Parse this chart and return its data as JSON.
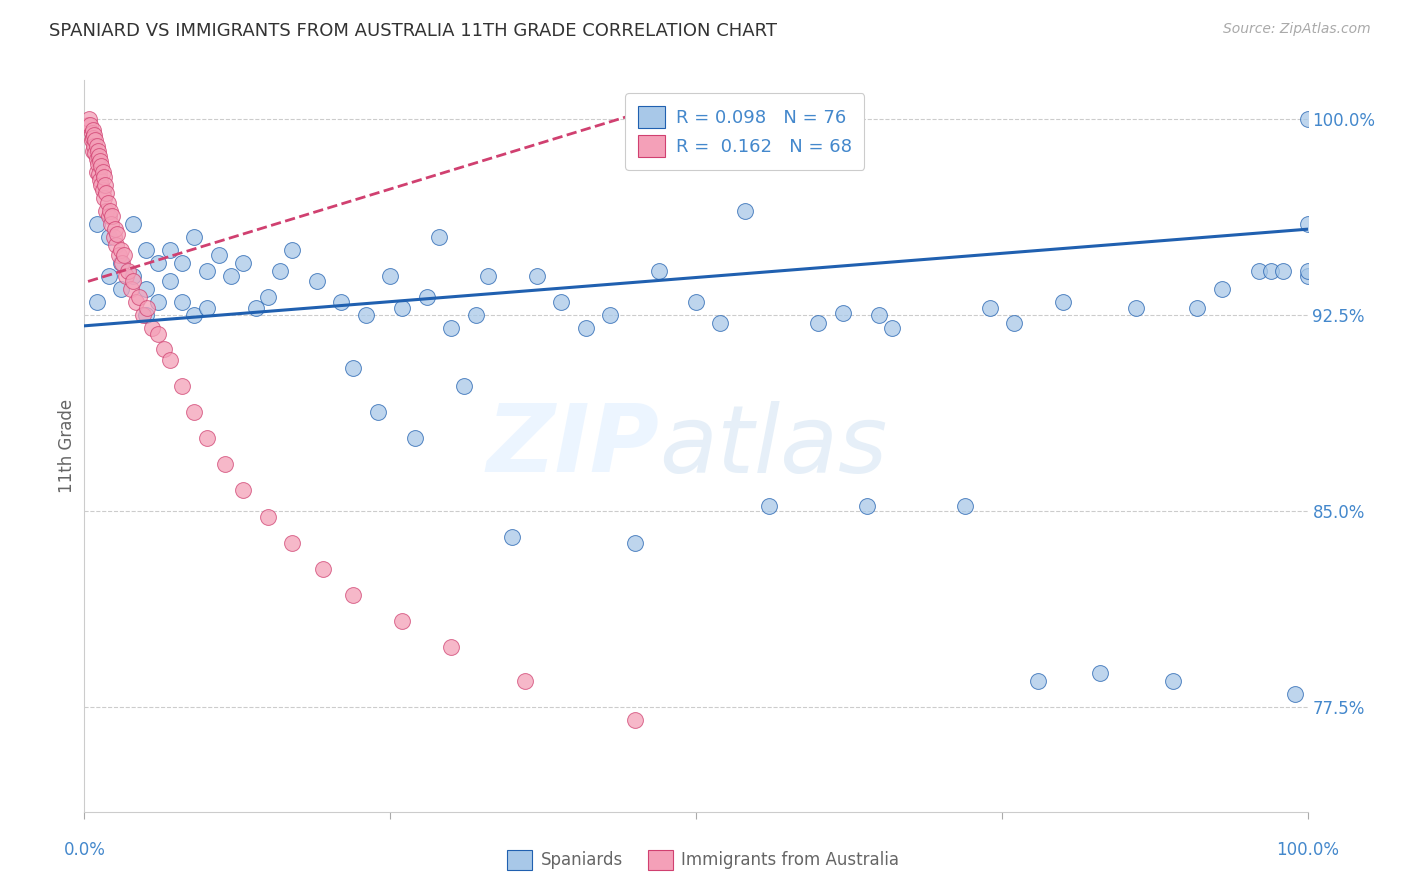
{
  "title": "SPANIARD VS IMMIGRANTS FROM AUSTRALIA 11TH GRADE CORRELATION CHART",
  "source": "Source: ZipAtlas.com",
  "ylabel": "11th Grade",
  "ytick_labels": [
    "100.0%",
    "92.5%",
    "85.0%",
    "77.5%"
  ],
  "ytick_values": [
    1.0,
    0.925,
    0.85,
    0.775
  ],
  "xlim": [
    0.0,
    1.0
  ],
  "ylim": [
    0.735,
    1.015
  ],
  "legend_r_blue": "R = 0.098",
  "legend_n_blue": "N = 76",
  "legend_r_pink": "R = 0.162",
  "legend_n_pink": "N = 68",
  "blue_color": "#a8c8e8",
  "pink_color": "#f4a0b8",
  "line_blue": "#2060b0",
  "line_pink": "#d04070",
  "watermark_zip": "ZIP",
  "watermark_atlas": "atlas",
  "blue_scatter_x": [
    0.01,
    0.01,
    0.02,
    0.02,
    0.03,
    0.03,
    0.04,
    0.04,
    0.05,
    0.05,
    0.05,
    0.06,
    0.06,
    0.07,
    0.07,
    0.08,
    0.08,
    0.09,
    0.09,
    0.1,
    0.1,
    0.11,
    0.12,
    0.13,
    0.14,
    0.15,
    0.16,
    0.17,
    0.19,
    0.21,
    0.22,
    0.23,
    0.24,
    0.25,
    0.26,
    0.27,
    0.28,
    0.29,
    0.3,
    0.31,
    0.32,
    0.33,
    0.35,
    0.37,
    0.39,
    0.41,
    0.43,
    0.45,
    0.47,
    0.5,
    0.52,
    0.54,
    0.56,
    0.6,
    0.62,
    0.64,
    0.65,
    0.66,
    0.72,
    0.74,
    0.76,
    0.78,
    0.8,
    0.83,
    0.86,
    0.89,
    0.91,
    0.93,
    0.96,
    0.97,
    0.98,
    0.99,
    1.0,
    1.0,
    1.0,
    1.0
  ],
  "blue_scatter_y": [
    0.93,
    0.96,
    0.94,
    0.955,
    0.945,
    0.935,
    0.96,
    0.94,
    0.95,
    0.935,
    0.925,
    0.945,
    0.93,
    0.95,
    0.938,
    0.945,
    0.93,
    0.955,
    0.925,
    0.942,
    0.928,
    0.948,
    0.94,
    0.945,
    0.928,
    0.932,
    0.942,
    0.95,
    0.938,
    0.93,
    0.905,
    0.925,
    0.888,
    0.94,
    0.928,
    0.878,
    0.932,
    0.955,
    0.92,
    0.898,
    0.925,
    0.94,
    0.84,
    0.94,
    0.93,
    0.92,
    0.925,
    0.838,
    0.942,
    0.93,
    0.922,
    0.965,
    0.852,
    0.922,
    0.926,
    0.852,
    0.925,
    0.92,
    0.852,
    0.928,
    0.922,
    0.785,
    0.93,
    0.788,
    0.928,
    0.785,
    0.928,
    0.935,
    0.942,
    0.942,
    0.942,
    0.78,
    1.0,
    0.94,
    0.96,
    0.942
  ],
  "pink_scatter_x": [
    0.003,
    0.004,
    0.005,
    0.006,
    0.006,
    0.007,
    0.007,
    0.007,
    0.008,
    0.008,
    0.009,
    0.009,
    0.01,
    0.01,
    0.01,
    0.011,
    0.011,
    0.012,
    0.012,
    0.013,
    0.013,
    0.014,
    0.014,
    0.015,
    0.015,
    0.016,
    0.016,
    0.017,
    0.018,
    0.018,
    0.019,
    0.02,
    0.021,
    0.022,
    0.023,
    0.024,
    0.025,
    0.026,
    0.027,
    0.028,
    0.03,
    0.031,
    0.032,
    0.034,
    0.036,
    0.038,
    0.04,
    0.042,
    0.045,
    0.048,
    0.051,
    0.055,
    0.06,
    0.065,
    0.07,
    0.08,
    0.09,
    0.1,
    0.115,
    0.13,
    0.15,
    0.17,
    0.195,
    0.22,
    0.26,
    0.3,
    0.36,
    0.45
  ],
  "pink_scatter_y": [
    0.998,
    1.0,
    0.998,
    0.995,
    0.992,
    0.996,
    0.993,
    0.988,
    0.994,
    0.99,
    0.992,
    0.987,
    0.99,
    0.985,
    0.98,
    0.988,
    0.983,
    0.986,
    0.979,
    0.984,
    0.977,
    0.982,
    0.975,
    0.98,
    0.973,
    0.978,
    0.97,
    0.975,
    0.972,
    0.965,
    0.968,
    0.963,
    0.965,
    0.96,
    0.963,
    0.955,
    0.958,
    0.952,
    0.956,
    0.948,
    0.95,
    0.945,
    0.948,
    0.94,
    0.942,
    0.935,
    0.938,
    0.93,
    0.932,
    0.925,
    0.928,
    0.92,
    0.918,
    0.912,
    0.908,
    0.898,
    0.888,
    0.878,
    0.868,
    0.858,
    0.848,
    0.838,
    0.828,
    0.818,
    0.808,
    0.798,
    0.785,
    0.77
  ],
  "blue_line_x": [
    0.0,
    1.0
  ],
  "blue_line_y": [
    0.921,
    0.958
  ],
  "pink_line_x": [
    0.003,
    0.45
  ],
  "pink_line_y": [
    0.938,
    1.002
  ],
  "bg_color": "#ffffff",
  "grid_color": "#cccccc",
  "title_color": "#333333",
  "label_color": "#666666",
  "ytick_color": "#4488cc"
}
